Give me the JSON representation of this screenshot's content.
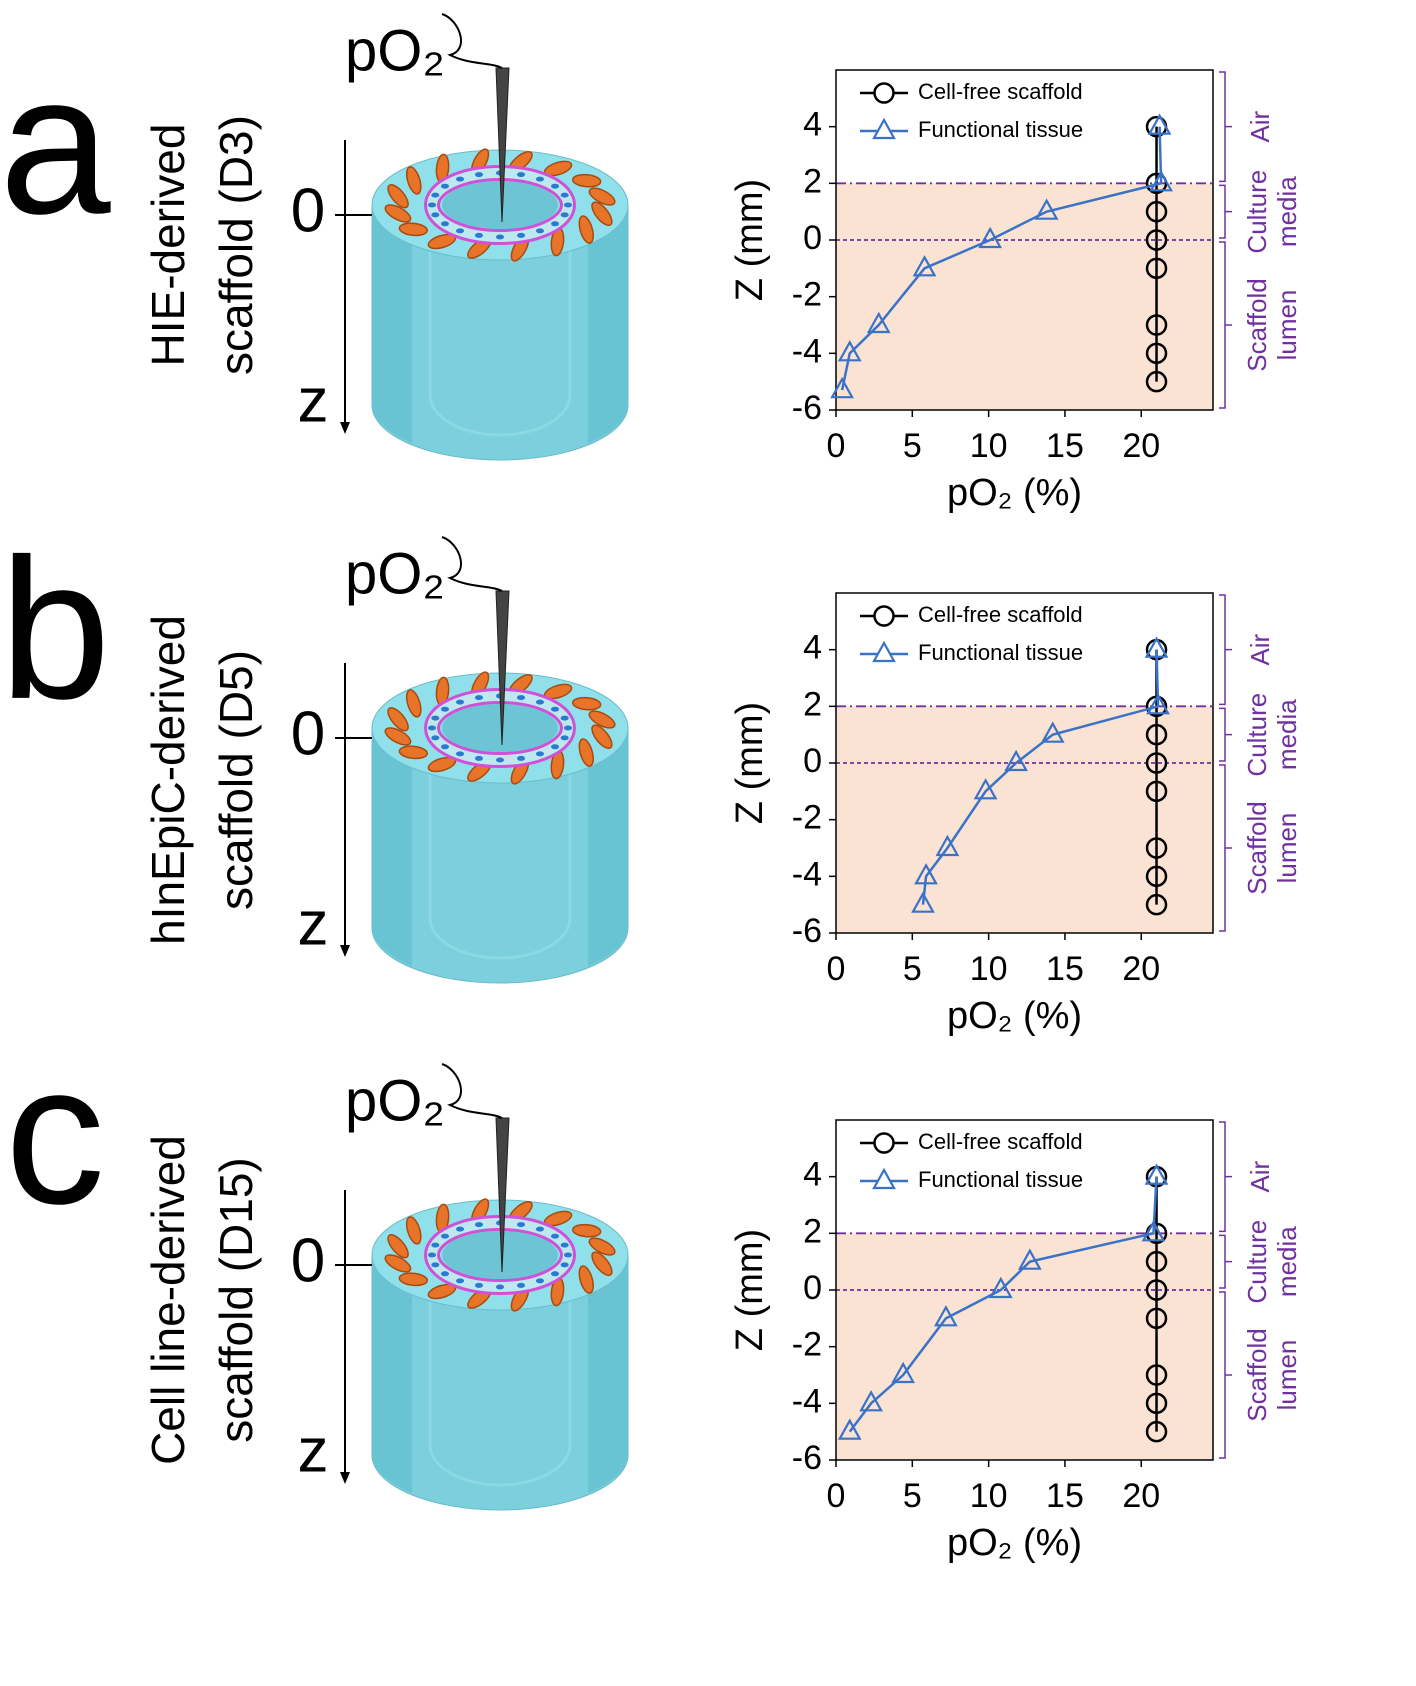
{
  "chart_data": [
    {
      "type": "line",
      "panel": "a",
      "sample_label": [
        "HIE-derived",
        "scaffold (D3)"
      ],
      "probe_label": "pO₂",
      "zero_label": "0",
      "depth_label": "z",
      "xlabel": "pO₂ (%)",
      "ylabel": "Z (mm)",
      "xlim": [
        0,
        24.7
      ],
      "ylim": [
        -6,
        6
      ],
      "xticks": [
        0,
        5,
        10,
        15,
        20
      ],
      "yticks": [
        -6,
        -4,
        -2,
        0,
        2,
        4
      ],
      "shade": {
        "range": [
          -6,
          2
        ],
        "color": "#fae3d3"
      },
      "hlines": [
        {
          "value": 2,
          "style": "dashdot"
        },
        {
          "value": 0,
          "style": "dashed"
        }
      ],
      "regions": [
        {
          "label": [
            "Air"
          ],
          "range": [
            2,
            6
          ]
        },
        {
          "label": [
            "Culture",
            "media"
          ],
          "range": [
            0,
            2
          ]
        },
        {
          "label": [
            "Scaffold",
            "lumen"
          ],
          "range": [
            -6,
            0
          ]
        }
      ],
      "region_color": "#7030a0",
      "legend": "upper left",
      "series": [
        {
          "name": "Cell-free scaffold",
          "color": "#000000",
          "marker": "circle",
          "x": [
            21,
            21,
            21,
            21,
            21,
            21,
            21,
            21
          ],
          "values": [
            4,
            2,
            1,
            0,
            -1,
            -3,
            -4,
            -5
          ]
        },
        {
          "name": "Functional tissue",
          "color": "#3a72c8",
          "marker": "triangle",
          "x": [
            21.2,
            21.3,
            13.8,
            10.1,
            5.8,
            2.8,
            0.9,
            0.4
          ],
          "values": [
            4,
            2,
            1,
            0,
            -1,
            -3,
            -4,
            -5.3
          ]
        }
      ]
    },
    {
      "type": "line",
      "panel": "b",
      "sample_label": [
        "hInEpiC-derived",
        "scaffold (D5)"
      ],
      "probe_label": "pO₂",
      "zero_label": "0",
      "depth_label": "z",
      "xlabel": "pO₂ (%)",
      "ylabel": "Z (mm)",
      "xlim": [
        0,
        24.7
      ],
      "ylim": [
        -6,
        6
      ],
      "xticks": [
        0,
        5,
        10,
        15,
        20
      ],
      "yticks": [
        -6,
        -4,
        -2,
        0,
        2,
        4
      ],
      "shade": {
        "range": [
          -6,
          2
        ],
        "color": "#fae3d3"
      },
      "hlines": [
        {
          "value": 2,
          "style": "dashdot"
        },
        {
          "value": 0,
          "style": "dashed"
        }
      ],
      "regions": [
        {
          "label": [
            "Air"
          ],
          "range": [
            2,
            6
          ]
        },
        {
          "label": [
            "Culture",
            "media"
          ],
          "range": [
            0,
            2
          ]
        },
        {
          "label": [
            "Scaffold",
            "lumen"
          ],
          "range": [
            -6,
            0
          ]
        }
      ],
      "region_color": "#7030a0",
      "legend": "upper left",
      "series": [
        {
          "name": "Cell-free scaffold",
          "color": "#000000",
          "marker": "circle",
          "x": [
            21,
            21,
            21,
            21,
            21,
            21,
            21,
            21
          ],
          "values": [
            4,
            2,
            1,
            0,
            -1,
            -3,
            -4,
            -5
          ]
        },
        {
          "name": "Functional tissue",
          "color": "#3a72c8",
          "marker": "triangle",
          "x": [
            21,
            21.1,
            14.2,
            11.8,
            9.8,
            7.3,
            5.9,
            5.7
          ],
          "values": [
            4,
            2,
            1,
            0,
            -1,
            -3,
            -4,
            -5
          ]
        }
      ]
    },
    {
      "type": "line",
      "panel": "c",
      "sample_label": [
        "Cell line-derived",
        "scaffold (D15)"
      ],
      "probe_label": "pO₂",
      "zero_label": "0",
      "depth_label": "z",
      "xlabel": "pO₂ (%)",
      "ylabel": "Z (mm)",
      "xlim": [
        0,
        24.7
      ],
      "ylim": [
        -6,
        6
      ],
      "xticks": [
        0,
        5,
        10,
        15,
        20
      ],
      "yticks": [
        -6,
        -4,
        -2,
        0,
        2,
        4
      ],
      "shade": {
        "range": [
          -6,
          2
        ],
        "color": "#fae3d3"
      },
      "hlines": [
        {
          "value": 2,
          "style": "dashdot"
        },
        {
          "value": 0,
          "style": "dashed"
        }
      ],
      "regions": [
        {
          "label": [
            "Air"
          ],
          "range": [
            2,
            6
          ]
        },
        {
          "label": [
            "Culture",
            "media"
          ],
          "range": [
            0,
            2
          ]
        },
        {
          "label": [
            "Scaffold",
            "lumen"
          ],
          "range": [
            -6,
            0
          ]
        }
      ],
      "region_color": "#7030a0",
      "legend": "upper left",
      "series": [
        {
          "name": "Cell-free scaffold",
          "color": "#000000",
          "marker": "circle",
          "x": [
            21,
            21,
            21,
            21,
            21,
            21,
            21,
            21
          ],
          "values": [
            4,
            2,
            1,
            0,
            -1,
            -3,
            -4,
            -5
          ]
        },
        {
          "name": "Functional tissue",
          "color": "#3a72c8",
          "marker": "triangle",
          "x": [
            21,
            20.8,
            12.7,
            10.8,
            7.2,
            4.4,
            2.3,
            0.9
          ],
          "values": [
            4,
            2,
            1,
            0,
            -1,
            -3,
            -4,
            -5
          ]
        }
      ]
    }
  ]
}
